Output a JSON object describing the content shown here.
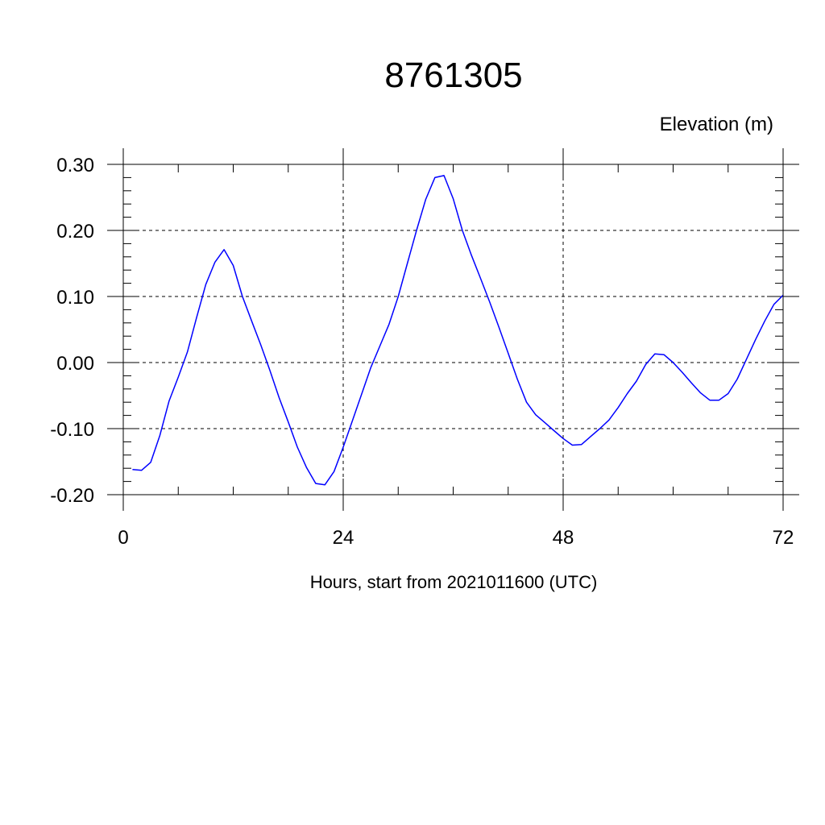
{
  "chart_data": {
    "type": "line",
    "title": "8761305",
    "ylabel": "Elevation (m)",
    "xlabel": "Hours, start from 2021011600 (UTC)",
    "xlim": [
      0,
      72
    ],
    "ylim": [
      -0.2,
      0.3
    ],
    "x_ticks": [
      0,
      24,
      48,
      72
    ],
    "x_tick_labels": [
      "0",
      "24",
      "48",
      "72"
    ],
    "y_ticks": [
      -0.2,
      -0.1,
      0.0,
      0.1,
      0.2,
      0.3
    ],
    "y_tick_labels": [
      "-0.20",
      "-0.10",
      "0.00",
      "0.10",
      "0.20",
      "0.30"
    ],
    "grid": true,
    "series": [
      {
        "color": "#0000ff",
        "x": [
          1,
          2,
          3,
          4,
          5,
          6,
          7,
          8,
          9,
          10,
          11,
          12,
          13,
          14,
          15,
          16,
          17,
          18,
          19,
          20,
          21,
          22,
          23,
          24,
          25,
          26,
          27,
          28,
          29,
          30,
          31,
          32,
          33,
          34,
          35,
          36,
          37,
          38,
          39,
          40,
          41,
          42,
          43,
          44,
          45,
          46,
          47,
          48,
          49,
          50,
          51,
          52,
          53,
          54,
          55,
          56,
          57,
          58,
          59,
          60,
          61,
          62,
          63,
          64,
          65,
          66,
          67,
          68,
          69,
          70,
          71,
          72
        ],
        "values": [
          -0.162,
          -0.163,
          -0.151,
          -0.11,
          -0.058,
          -0.022,
          0.016,
          0.068,
          0.118,
          0.152,
          0.171,
          0.147,
          0.1,
          0.063,
          0.027,
          -0.012,
          -0.053,
          -0.09,
          -0.128,
          -0.159,
          -0.183,
          -0.185,
          -0.165,
          -0.128,
          -0.088,
          -0.048,
          -0.008,
          0.025,
          0.058,
          0.1,
          0.15,
          0.2,
          0.247,
          0.28,
          0.283,
          0.248,
          0.2,
          0.162,
          0.127,
          0.091,
          0.053,
          0.014,
          -0.025,
          -0.06,
          -0.079,
          -0.091,
          -0.103,
          -0.115,
          -0.125,
          -0.124,
          -0.112,
          -0.1,
          -0.087,
          -0.068,
          -0.047,
          -0.028,
          -0.003,
          0.013,
          0.012,
          0.0,
          -0.015,
          -0.031,
          -0.046,
          -0.057,
          -0.057,
          -0.047,
          -0.025,
          0.005,
          0.035,
          0.063,
          0.088,
          0.102
        ]
      }
    ]
  }
}
